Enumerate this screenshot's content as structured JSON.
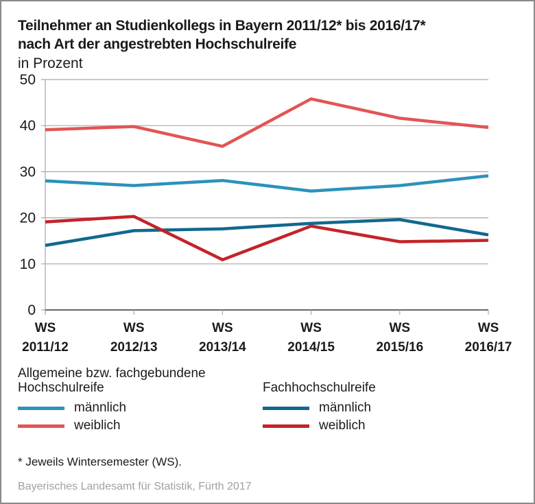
{
  "chart_data": {
    "type": "line",
    "title": "Teilnehmer an Studienkollegs in Bayern 2011/12* bis 2016/17*",
    "title_line2": "nach Art der angestrebten Hochschulreife",
    "subtitle": "in Prozent",
    "xlabel": "",
    "ylabel": "in Prozent",
    "ylim": [
      0,
      50
    ],
    "yticks": [
      0,
      10,
      20,
      30,
      40,
      50
    ],
    "grid": true,
    "categories": [
      {
        "line1": "WS",
        "line2": "2011/12"
      },
      {
        "line1": "WS",
        "line2": "2012/13"
      },
      {
        "line1": "WS",
        "line2": "2013/14"
      },
      {
        "line1": "WS",
        "line2": "2014/15"
      },
      {
        "line1": "WS",
        "line2": "2015/16"
      },
      {
        "line1": "WS",
        "line2": "2016/17"
      }
    ],
    "series": [
      {
        "name": "Allgemeine bzw. fachgebundene Hochschulreife – männlich",
        "group": "Allgemeine bzw. fachgebundene Hochschulreife",
        "label": "männlich",
        "color": "#2a93bb",
        "values": [
          28.0,
          27.0,
          28.1,
          25.8,
          27.0,
          29.1
        ]
      },
      {
        "name": "Allgemeine bzw. fachgebundene Hochschulreife – weiblich",
        "group": "Allgemeine bzw. fachgebundene Hochschulreife",
        "label": "weiblich",
        "color": "#e25555",
        "values": [
          39.1,
          39.8,
          35.5,
          45.8,
          41.6,
          39.6
        ]
      },
      {
        "name": "Fachhochschulreife – männlich",
        "group": "Fachhochschulreife",
        "label": "männlich",
        "color": "#12688e",
        "values": [
          14.0,
          17.2,
          17.6,
          18.8,
          19.6,
          16.3
        ]
      },
      {
        "name": "Fachhochschulreife – weiblich",
        "group": "Fachhochschulreife",
        "label": "weiblich",
        "color": "#c42328",
        "values": [
          19.1,
          20.3,
          10.9,
          18.2,
          14.8,
          15.1
        ]
      }
    ],
    "legend": {
      "placement": "bottom",
      "groups": [
        {
          "title_line1": "Allgemeine bzw. fachgebundene",
          "title_line2": "Hochschulreife",
          "items": [
            {
              "label": "männlich",
              "color": "#2a93bb"
            },
            {
              "label": "weiblich",
              "color": "#e25555"
            }
          ]
        },
        {
          "title_line1": "",
          "title_line2": "Fachhochschulreife",
          "items": [
            {
              "label": "männlich",
              "color": "#12688e"
            },
            {
              "label": "weiblich",
              "color": "#c42328"
            }
          ]
        }
      ]
    },
    "footnote": "* Jeweils Wintersemester (WS).",
    "source": "Bayerisches Landesamt für Statistik, Fürth 2017"
  }
}
